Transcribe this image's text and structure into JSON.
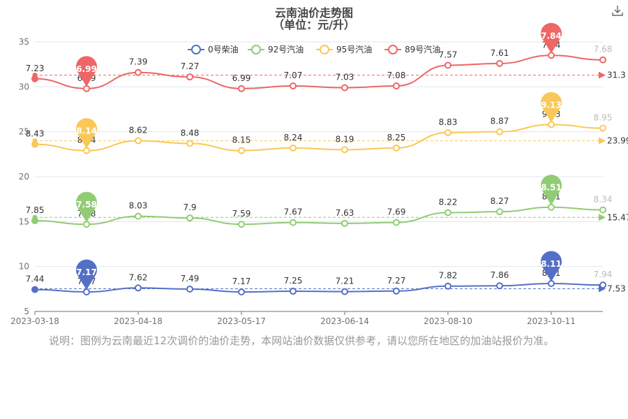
{
  "title": {
    "line1": "云南油价走势图",
    "line2": "（单位：元/升）"
  },
  "note": "说明：图例为云南最近12次调价的油价走势，本网站油价数据仅供参考，请以您所在地区的加油站报价为准。",
  "icons": {
    "download": "download-icon"
  },
  "chart_data": {
    "type": "line",
    "x_tick_labels": [
      "2023-03-18",
      "2023-04-18",
      "2023-05-17",
      "2023-06-14",
      "2023-08-10",
      "2023-10-11"
    ],
    "ylim": [
      5,
      35
    ],
    "y_ticks": [
      5,
      10,
      15,
      20,
      25,
      30,
      35
    ],
    "legend": {
      "position": "top",
      "entries": [
        "0号柴油",
        "92号汽油",
        "95号汽油",
        "89号汽油"
      ]
    },
    "series": [
      {
        "name": "0号柴油",
        "color": "#5470c6",
        "labels": [
          "7.44",
          "7.17",
          "7.62",
          "7.49",
          "7.17",
          "7.25",
          "7.21",
          "7.27",
          "7.82",
          "7.86",
          "8.11",
          "7.94"
        ],
        "values": [
          7.44,
          7.17,
          7.62,
          7.49,
          7.17,
          7.25,
          7.21,
          7.27,
          7.82,
          7.86,
          8.11,
          7.94
        ],
        "min_pin": "7.17",
        "max_pin": "8.11",
        "avg_label": "7.53",
        "avg": 7.53
      },
      {
        "name": "92号汽油",
        "color": "#91cc75",
        "labels": [
          "7.85",
          "7.58",
          "8.03",
          "7.9",
          "7.59",
          "7.67",
          "7.63",
          "7.69",
          "8.22",
          "8.27",
          "8.51",
          "8.34"
        ],
        "values": [
          15.1,
          14.7,
          15.6,
          15.4,
          14.7,
          14.9,
          14.8,
          14.9,
          16.0,
          16.1,
          16.6,
          16.3
        ],
        "min_pin": "7.58",
        "max_pin": "8.51",
        "avg_label": "15.47",
        "avg": 15.47
      },
      {
        "name": "95号汽油",
        "color": "#fac858",
        "labels": [
          "8.43",
          "8.14",
          "8.62",
          "8.48",
          "8.15",
          "8.24",
          "8.19",
          "8.25",
          "8.83",
          "8.87",
          "9.13",
          "8.95"
        ],
        "values": [
          23.6,
          22.9,
          24.0,
          23.7,
          22.9,
          23.2,
          23.0,
          23.2,
          24.9,
          25.0,
          25.8,
          25.4
        ],
        "min_pin": "8.14",
        "max_pin": "9.13",
        "avg_label": "23.99",
        "avg": 23.99
      },
      {
        "name": "89号汽油",
        "color": "#ee6666",
        "labels": [
          "7.23",
          "6.99",
          "7.39",
          "7.27",
          "6.99",
          "7.07",
          "7.03",
          "7.08",
          "7.57",
          "7.61",
          "7.84",
          "7.68"
        ],
        "values": [
          30.9,
          29.8,
          31.6,
          31.1,
          29.8,
          30.1,
          29.9,
          30.1,
          32.4,
          32.6,
          33.5,
          33.0
        ],
        "min_pin": "6.99",
        "max_pin": "7.84",
        "avg_label": "31.3",
        "avg": 31.3
      }
    ]
  }
}
